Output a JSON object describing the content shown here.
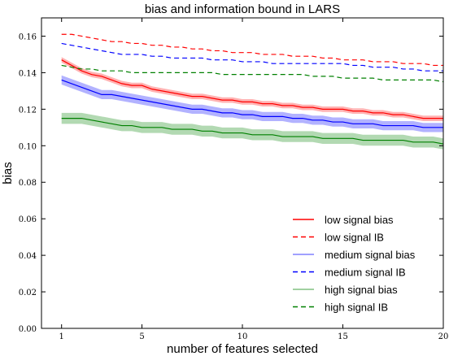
{
  "chart_data": {
    "type": "line",
    "title": "bias and information bound in LARS",
    "xlabel": "number of features selected",
    "ylabel": "bias",
    "xlim": [
      0,
      20
    ],
    "ylim": [
      0.0,
      0.17
    ],
    "xticks": [
      1,
      5,
      10,
      15,
      20
    ],
    "xtick_labels": [
      "1",
      "5",
      "10",
      "15",
      "20"
    ],
    "yticks": [
      0.0,
      0.02,
      0.04,
      0.06,
      0.08,
      0.1,
      0.12,
      0.14,
      0.16
    ],
    "ytick_labels": [
      "0.00",
      "0.02",
      "0.04",
      "0.06",
      "0.08",
      "0.10",
      "0.12",
      "0.14",
      "0.16"
    ],
    "grid": false,
    "legend_position": "lower-right",
    "x": [
      1,
      1.5,
      2,
      2.5,
      3,
      3.5,
      4,
      4.5,
      5,
      5.5,
      6,
      6.5,
      7,
      7.5,
      8,
      8.5,
      9,
      9.5,
      10,
      10.5,
      11,
      11.5,
      12,
      12.5,
      13,
      13.5,
      14,
      14.5,
      15,
      15.5,
      16,
      16.5,
      17,
      17.5,
      18,
      18.5,
      19,
      19.5,
      20
    ],
    "series": [
      {
        "name": "low signal bias",
        "color": "#ff0000",
        "style": "solid",
        "band": 0.0015,
        "values": [
          0.147,
          0.144,
          0.141,
          0.139,
          0.138,
          0.136,
          0.134,
          0.133,
          0.133,
          0.131,
          0.13,
          0.129,
          0.128,
          0.127,
          0.127,
          0.126,
          0.125,
          0.125,
          0.124,
          0.124,
          0.123,
          0.123,
          0.122,
          0.122,
          0.121,
          0.121,
          0.12,
          0.12,
          0.12,
          0.119,
          0.119,
          0.118,
          0.118,
          0.117,
          0.117,
          0.116,
          0.115,
          0.115,
          0.115
        ]
      },
      {
        "name": "low signal IB",
        "color": "#ff0000",
        "style": "dashed",
        "values": [
          0.161,
          0.161,
          0.16,
          0.159,
          0.158,
          0.157,
          0.157,
          0.156,
          0.156,
          0.155,
          0.155,
          0.154,
          0.154,
          0.153,
          0.153,
          0.152,
          0.152,
          0.151,
          0.151,
          0.151,
          0.15,
          0.15,
          0.15,
          0.149,
          0.149,
          0.149,
          0.148,
          0.148,
          0.147,
          0.147,
          0.147,
          0.146,
          0.146,
          0.146,
          0.145,
          0.145,
          0.145,
          0.144,
          0.144
        ]
      },
      {
        "name": "medium signal bias",
        "color": "#0000ff",
        "style": "solid",
        "band": 0.0025,
        "values": [
          0.136,
          0.134,
          0.132,
          0.13,
          0.128,
          0.128,
          0.127,
          0.126,
          0.125,
          0.124,
          0.123,
          0.122,
          0.121,
          0.12,
          0.12,
          0.119,
          0.118,
          0.118,
          0.117,
          0.117,
          0.116,
          0.116,
          0.116,
          0.115,
          0.115,
          0.114,
          0.114,
          0.113,
          0.113,
          0.112,
          0.112,
          0.112,
          0.111,
          0.111,
          0.111,
          0.111,
          0.11,
          0.11,
          0.11
        ]
      },
      {
        "name": "medium signal IB",
        "color": "#0000ff",
        "style": "dashed",
        "values": [
          0.156,
          0.155,
          0.154,
          0.153,
          0.152,
          0.151,
          0.15,
          0.15,
          0.15,
          0.149,
          0.149,
          0.148,
          0.148,
          0.148,
          0.148,
          0.147,
          0.147,
          0.147,
          0.146,
          0.146,
          0.146,
          0.145,
          0.145,
          0.145,
          0.145,
          0.145,
          0.145,
          0.145,
          0.145,
          0.144,
          0.144,
          0.143,
          0.143,
          0.143,
          0.142,
          0.142,
          0.141,
          0.141,
          0.141
        ]
      },
      {
        "name": "high signal bias",
        "color": "#008000",
        "style": "solid",
        "band": 0.003,
        "values": [
          0.115,
          0.115,
          0.115,
          0.114,
          0.113,
          0.112,
          0.111,
          0.111,
          0.11,
          0.11,
          0.11,
          0.109,
          0.109,
          0.109,
          0.108,
          0.108,
          0.107,
          0.107,
          0.107,
          0.106,
          0.106,
          0.106,
          0.105,
          0.105,
          0.105,
          0.105,
          0.104,
          0.104,
          0.104,
          0.104,
          0.103,
          0.103,
          0.103,
          0.103,
          0.103,
          0.102,
          0.102,
          0.102,
          0.101
        ]
      },
      {
        "name": "high signal IB",
        "color": "#008000",
        "style": "dashed",
        "values": [
          0.144,
          0.143,
          0.142,
          0.142,
          0.141,
          0.141,
          0.141,
          0.14,
          0.14,
          0.14,
          0.14,
          0.14,
          0.14,
          0.14,
          0.14,
          0.14,
          0.139,
          0.139,
          0.139,
          0.139,
          0.139,
          0.139,
          0.139,
          0.139,
          0.139,
          0.138,
          0.138,
          0.138,
          0.137,
          0.137,
          0.137,
          0.137,
          0.136,
          0.136,
          0.136,
          0.136,
          0.136,
          0.136,
          0.135
        ]
      }
    ],
    "legend": [
      {
        "label": "low signal bias",
        "color": "#ff0000",
        "style": "solid"
      },
      {
        "label": "low signal IB",
        "color": "#ff0000",
        "style": "dashed"
      },
      {
        "label": "medium signal bias",
        "color": "#8080ff",
        "style": "solid"
      },
      {
        "label": "medium signal IB",
        "color": "#0000ff",
        "style": "dashed"
      },
      {
        "label": "high signal bias",
        "color": "#80c080",
        "style": "solid"
      },
      {
        "label": "high signal IB",
        "color": "#008000",
        "style": "dashed"
      }
    ]
  }
}
